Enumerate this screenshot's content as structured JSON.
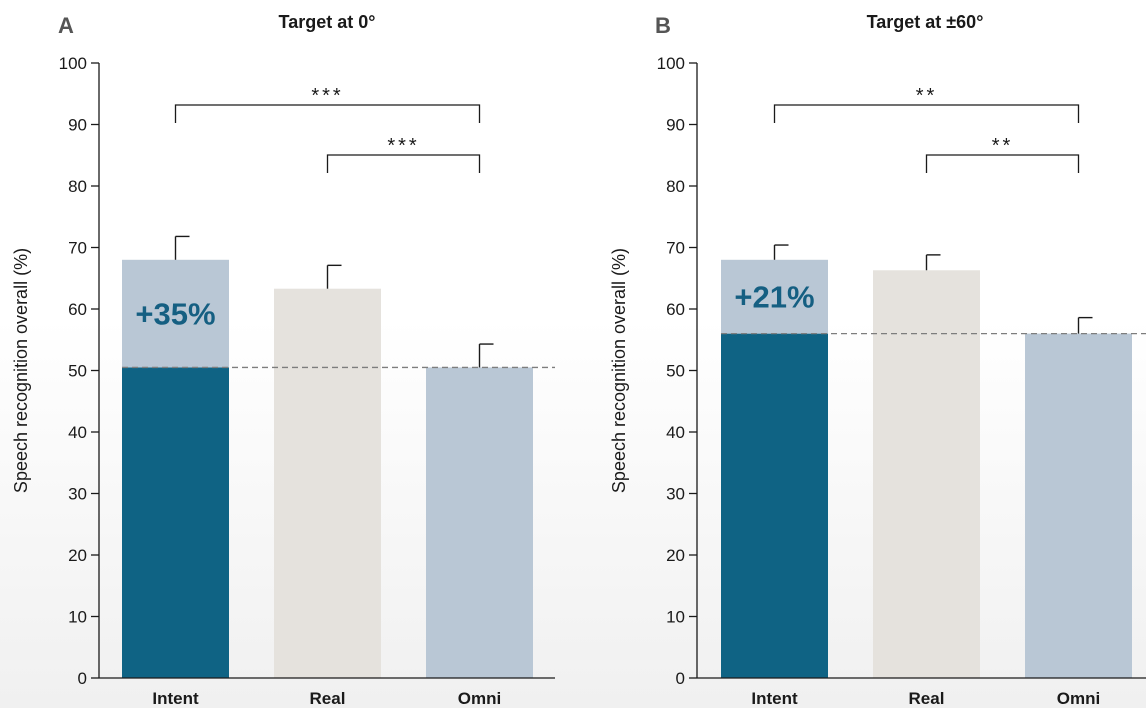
{
  "chart_data": [
    {
      "type": "bar",
      "panel": "A",
      "title": "Target at 0°",
      "ylabel": "Speech recognition overall (%)",
      "ylim": [
        0,
        100
      ],
      "yticks": [
        0,
        10,
        20,
        30,
        40,
        50,
        60,
        70,
        80,
        90,
        100
      ],
      "categories": [
        "Intent",
        "Real",
        "Omni"
      ],
      "values": [
        68,
        63.3,
        50.5
      ],
      "error_upper": [
        71.8,
        67.1,
        54.3
      ],
      "baseline": 50.5,
      "baseline_bar_split": 50.5,
      "improvement_label": "+35%",
      "significance": [
        {
          "from": "Intent",
          "to": "Omni",
          "label": "***"
        },
        {
          "from": "Real",
          "to": "Omni",
          "label": "***"
        }
      ],
      "colors": {
        "intent": "#0f6384",
        "intent_gain": "#b9c7d5",
        "real": "#e5e2dd",
        "omni": "#b9c7d5",
        "panel_letter": "#555555",
        "annotation": "#155f82"
      }
    },
    {
      "type": "bar",
      "panel": "B",
      "title": "Target at ±60°",
      "ylabel": "Speech recognition overall (%)",
      "ylim": [
        0,
        100
      ],
      "yticks": [
        0,
        10,
        20,
        30,
        40,
        50,
        60,
        70,
        80,
        90,
        100
      ],
      "categories": [
        "Intent",
        "Real",
        "Omni"
      ],
      "values": [
        68,
        66.3,
        56
      ],
      "error_upper": [
        70.4,
        68.8,
        58.6
      ],
      "baseline": 56,
      "baseline_bar_split": 56,
      "improvement_label": "+21%",
      "significance": [
        {
          "from": "Intent",
          "to": "Omni",
          "label": "**"
        },
        {
          "from": "Real",
          "to": "Omni",
          "label": "**"
        }
      ],
      "colors": {
        "intent": "#0f6384",
        "intent_gain": "#b9c7d5",
        "real": "#e5e2dd",
        "omni": "#b9c7d5",
        "panel_letter": "#555555",
        "annotation": "#155f82"
      }
    }
  ]
}
